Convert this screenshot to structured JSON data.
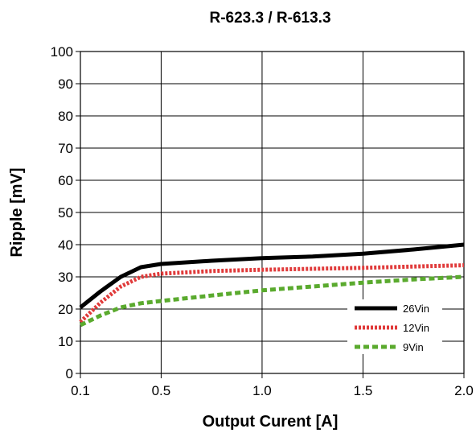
{
  "chart_data": {
    "type": "line",
    "title": "R-623.3 / R-613.3",
    "xlabel": "Output Curent [A]",
    "ylabel": "Ripple [mV]",
    "xlim": [
      0.1,
      2.0
    ],
    "ylim": [
      0,
      100
    ],
    "xticks": [
      "0.1",
      "0.5",
      "1.0",
      "1.5",
      "2.0"
    ],
    "xtick_values": [
      0.1,
      0.5,
      1.0,
      1.5,
      2.0
    ],
    "yticks": [
      "0",
      "10",
      "20",
      "30",
      "40",
      "50",
      "60",
      "70",
      "80",
      "90",
      "100"
    ],
    "ytick_values": [
      0,
      10,
      20,
      30,
      40,
      50,
      60,
      70,
      80,
      90,
      100
    ],
    "grid": true,
    "legend_position": "bottom-right",
    "series": [
      {
        "name": "26Vin",
        "color": "#000000",
        "style": "solid",
        "x": [
          0.1,
          0.2,
          0.3,
          0.4,
          0.5,
          0.75,
          1.0,
          1.25,
          1.5,
          1.75,
          2.0
        ],
        "y": [
          20.5,
          25.5,
          30.0,
          33.0,
          34.0,
          35.0,
          35.8,
          36.3,
          37.2,
          38.5,
          40.0
        ]
      },
      {
        "name": "12Vin",
        "color": "#e03a3a",
        "style": "dotted",
        "x": [
          0.1,
          0.2,
          0.3,
          0.4,
          0.5,
          0.75,
          1.0,
          1.25,
          1.5,
          1.75,
          2.0
        ],
        "y": [
          16.0,
          22.0,
          27.0,
          30.0,
          31.0,
          31.8,
          32.2,
          32.5,
          32.8,
          33.2,
          33.6
        ]
      },
      {
        "name": "9Vin",
        "color": "#5aaa2e",
        "style": "dashed",
        "x": [
          0.1,
          0.2,
          0.3,
          0.4,
          0.5,
          0.75,
          1.0,
          1.25,
          1.5,
          1.75,
          2.0
        ],
        "y": [
          15.0,
          18.0,
          20.5,
          21.8,
          22.5,
          24.2,
          25.8,
          27.0,
          28.2,
          29.2,
          30.0
        ]
      }
    ]
  }
}
